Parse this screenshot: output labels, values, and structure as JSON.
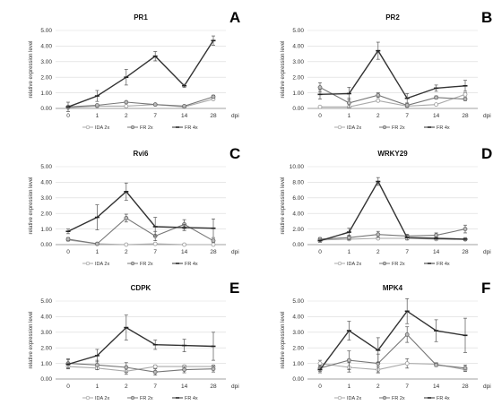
{
  "chart_data": [
    {
      "type": "line",
      "letter": "A",
      "title": "PR1",
      "ylabel": "relative expression level",
      "xlabel": "dpi",
      "categories": [
        "0",
        "1",
        "2",
        "7",
        "14",
        "28"
      ],
      "ylim": [
        0,
        5
      ],
      "yticks": [
        "0.00",
        "1.00",
        "2.00",
        "3.00",
        "4.00",
        "5.00"
      ],
      "series": [
        {
          "name": "IDA 2x",
          "values": [
            0.05,
            0.15,
            0.15,
            0.25,
            0.1,
            0.6
          ],
          "errors": [
            0.05,
            0.05,
            0.05,
            0.05,
            0.05,
            0.05
          ],
          "marker": "circle-open",
          "color": "#aaaaaa"
        },
        {
          "name": "FR 2x",
          "values": [
            0.1,
            0.2,
            0.4,
            0.25,
            0.15,
            0.75
          ],
          "errors": [
            0.05,
            0.05,
            0.05,
            0.05,
            0.05,
            0.1
          ],
          "marker": "circle-gray",
          "color": "#777777"
        },
        {
          "name": "FR 4x",
          "values": [
            0.1,
            0.8,
            2.0,
            3.35,
            1.45,
            4.35
          ],
          "errors": [
            0.3,
            0.35,
            0.5,
            0.3,
            0.1,
            0.3
          ],
          "marker": "dash",
          "color": "#333333"
        }
      ]
    },
    {
      "type": "line",
      "letter": "B",
      "title": "PR2",
      "ylabel": "relative expression level",
      "xlabel": "dpi",
      "categories": [
        "0",
        "1",
        "2",
        "7",
        "14",
        "28"
      ],
      "ylim": [
        0,
        5
      ],
      "yticks": [
        "0.00",
        "1.00",
        "2.00",
        "3.00",
        "4.00",
        "5.00"
      ],
      "series": [
        {
          "name": "IDA 2x",
          "values": [
            0.1,
            0.1,
            0.5,
            0.15,
            0.25,
            0.9
          ],
          "errors": [
            0.05,
            0.05,
            0.05,
            0.05,
            0.05,
            0.1
          ],
          "marker": "circle-open",
          "color": "#aaaaaa"
        },
        {
          "name": "FR 2x",
          "values": [
            1.35,
            0.35,
            0.85,
            0.2,
            0.7,
            0.6
          ],
          "errors": [
            0.3,
            0.3,
            0.15,
            0.1,
            0.1,
            0.1
          ],
          "marker": "circle-gray",
          "color": "#777777"
        },
        {
          "name": "FR 4x",
          "values": [
            0.9,
            0.95,
            3.7,
            0.65,
            1.3,
            1.45
          ],
          "errors": [
            0.3,
            0.4,
            0.55,
            0.3,
            0.2,
            0.35
          ],
          "marker": "dash",
          "color": "#333333"
        }
      ]
    },
    {
      "type": "line",
      "letter": "C",
      "title": "Rvi6",
      "ylabel": "relative expression level",
      "xlabel": "dpi",
      "categories": [
        "0",
        "1",
        "2",
        "7",
        "14",
        "28"
      ],
      "ylim": [
        0,
        5
      ],
      "yticks": [
        "0.00",
        "1.00",
        "2.00",
        "3.00",
        "4.00",
        "5.00"
      ],
      "series": [
        {
          "name": "IDA 2x",
          "values": [
            0.3,
            0.05,
            0.0,
            0.05,
            0.0,
            0.0
          ],
          "errors": [
            0.05,
            0.02,
            0.02,
            0.02,
            0.02,
            0.02
          ],
          "marker": "circle-open",
          "color": "#aaaaaa"
        },
        {
          "name": "FR 2x",
          "values": [
            0.35,
            0.05,
            1.7,
            0.55,
            1.3,
            0.25
          ],
          "errors": [
            0.1,
            0.05,
            0.25,
            0.3,
            0.3,
            0.1
          ],
          "marker": "circle-gray",
          "color": "#777777"
        },
        {
          "name": "FR 4x",
          "values": [
            0.85,
            1.75,
            3.4,
            1.15,
            1.1,
            1.05
          ],
          "errors": [
            0.15,
            0.8,
            0.55,
            0.6,
            0.2,
            0.6
          ],
          "marker": "dash",
          "color": "#333333"
        }
      ]
    },
    {
      "type": "line",
      "letter": "D",
      "title": "WRKY29",
      "ylabel": "relative expression level",
      "xlabel": "dpi",
      "categories": [
        "0",
        "1",
        "2",
        "7",
        "14",
        "28"
      ],
      "ylim": [
        0,
        10
      ],
      "yticks": [
        "0.00",
        "2.00",
        "4.00",
        "6.00",
        "8.00",
        "10.00"
      ],
      "series": [
        {
          "name": "IDA 2x",
          "values": [
            0.6,
            0.7,
            0.8,
            0.8,
            0.7,
            0.65
          ],
          "errors": [
            0.1,
            0.1,
            0.1,
            0.1,
            0.1,
            0.1
          ],
          "marker": "circle-open",
          "color": "#aaaaaa"
        },
        {
          "name": "FR 2x",
          "values": [
            0.7,
            0.9,
            1.3,
            1.1,
            1.2,
            2.0
          ],
          "errors": [
            0.2,
            0.3,
            0.4,
            0.2,
            0.3,
            0.5
          ],
          "marker": "circle-gray",
          "color": "#777777"
        },
        {
          "name": "FR 4x",
          "values": [
            0.5,
            1.6,
            8.1,
            0.9,
            0.8,
            0.7
          ],
          "errors": [
            0.2,
            0.5,
            0.5,
            0.3,
            0.2,
            0.2
          ],
          "marker": "dash",
          "color": "#333333"
        }
      ]
    },
    {
      "type": "line",
      "letter": "E",
      "title": "CDPK",
      "ylabel": "relative expression level",
      "xlabel": "dpi",
      "categories": [
        "0",
        "1",
        "2",
        "7",
        "14",
        "28"
      ],
      "ylim": [
        0,
        5
      ],
      "yticks": [
        "0.00",
        "1.00",
        "2.00",
        "3.00",
        "4.00",
        "5.00"
      ],
      "series": [
        {
          "name": "IDA 2x",
          "values": [
            0.8,
            0.7,
            0.5,
            0.8,
            0.8,
            0.8
          ],
          "errors": [
            0.1,
            0.1,
            0.2,
            0.1,
            0.1,
            0.1
          ],
          "marker": "circle-open",
          "color": "#aaaaaa"
        },
        {
          "name": "FR 2x",
          "values": [
            1.0,
            0.9,
            0.75,
            0.45,
            0.6,
            0.65
          ],
          "errors": [
            0.3,
            0.3,
            0.3,
            0.2,
            0.2,
            0.2
          ],
          "marker": "circle-gray",
          "color": "#777777"
        },
        {
          "name": "FR 4x",
          "values": [
            0.95,
            1.5,
            3.3,
            2.2,
            2.15,
            2.1
          ],
          "errors": [
            0.3,
            0.4,
            0.8,
            0.3,
            0.4,
            0.9
          ],
          "marker": "dash",
          "color": "#333333"
        }
      ]
    },
    {
      "type": "line",
      "letter": "F",
      "title": "MPK4",
      "ylabel": "relative expression level",
      "xlabel": "dpi",
      "categories": [
        "0",
        "1",
        "2",
        "7",
        "14",
        "28"
      ],
      "ylim": [
        0,
        5
      ],
      "yticks": [
        "0.00",
        "1.00",
        "2.00",
        "3.00",
        "4.00",
        "5.00"
      ],
      "series": [
        {
          "name": "IDA 2x",
          "values": [
            1.0,
            0.75,
            0.6,
            1.0,
            0.95,
            0.6
          ],
          "errors": [
            0.2,
            0.3,
            0.2,
            0.3,
            0.1,
            0.1
          ],
          "marker": "circle-open",
          "color": "#aaaaaa"
        },
        {
          "name": "FR 2x",
          "values": [
            0.7,
            1.2,
            1.0,
            2.85,
            0.9,
            0.7
          ],
          "errors": [
            0.2,
            0.6,
            0.6,
            0.5,
            0.1,
            0.2
          ],
          "marker": "circle-gray",
          "color": "#777777"
        },
        {
          "name": "FR 4x",
          "values": [
            0.6,
            3.1,
            1.85,
            4.35,
            3.1,
            2.8
          ],
          "errors": [
            0.2,
            0.6,
            0.8,
            0.8,
            0.7,
            1.1
          ],
          "marker": "dash",
          "color": "#333333"
        }
      ]
    }
  ]
}
